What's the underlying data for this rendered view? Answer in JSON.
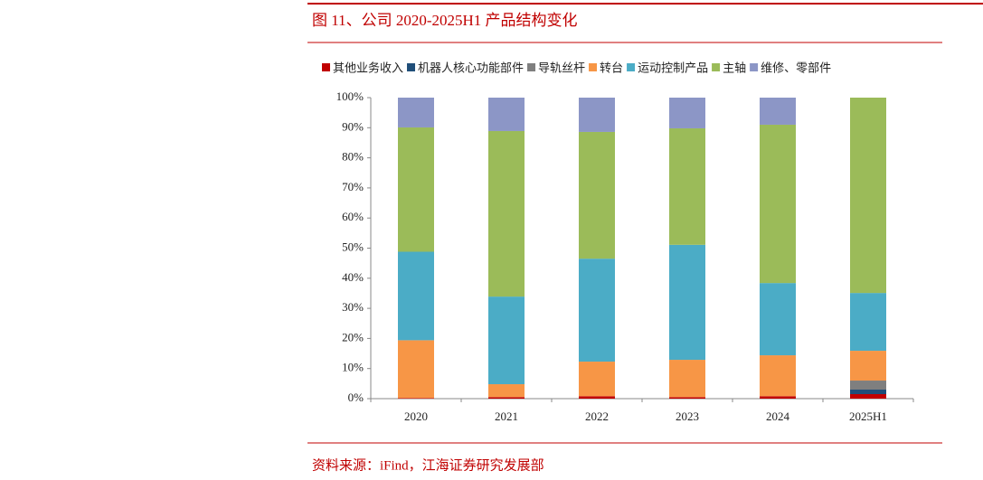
{
  "chart_data": {
    "type": "stacked_bar",
    "title": "图 11、公司 2020-2025H1 产品结构变化",
    "source": "资料来源：iFind，江海证券研究发展部",
    "categories": [
      "2020",
      "2021",
      "2022",
      "2023",
      "2024",
      "2025H1"
    ],
    "series": [
      {
        "name": "其他业务收入",
        "color": "#c00000",
        "values": [
          0.2,
          0.5,
          0.8,
          0.5,
          0.8,
          1.5
        ]
      },
      {
        "name": "机器人核心功能部件",
        "color": "#1f4e79",
        "values": [
          0,
          0,
          0,
          0,
          0,
          1.5
        ]
      },
      {
        "name": "导轨丝杆",
        "color": "#7f7f7f",
        "values": [
          0,
          0,
          0,
          0,
          0,
          3.0
        ]
      },
      {
        "name": "转台",
        "color": "#f79646",
        "values": [
          19.2,
          4.3,
          11.5,
          12.4,
          13.6,
          9.9
        ]
      },
      {
        "name": "运动控制产品",
        "color": "#4bacc6",
        "values": [
          29.4,
          29.1,
          34.2,
          38.2,
          24.0,
          19.2
        ]
      },
      {
        "name": "主轴",
        "color": "#9bbb59",
        "values": [
          41.3,
          55.0,
          42.1,
          38.7,
          52.6,
          64.9
        ]
      },
      {
        "name": "维修、零部件",
        "color": "#8c96c6",
        "values": [
          9.9,
          11.1,
          11.4,
          10.2,
          9.0,
          0
        ]
      }
    ],
    "ylim": [
      0,
      100
    ],
    "yticks": [
      {
        "value": 0,
        "label": "0%"
      },
      {
        "value": 10,
        "label": "10%"
      },
      {
        "value": 20,
        "label": "20%"
      },
      {
        "value": 30,
        "label": "30%"
      },
      {
        "value": 40,
        "label": "40%"
      },
      {
        "value": 50,
        "label": "50%"
      },
      {
        "value": 60,
        "label": "60%"
      },
      {
        "value": 70,
        "label": "70%"
      },
      {
        "value": 80,
        "label": "80%"
      },
      {
        "value": 90,
        "label": "90%"
      },
      {
        "value": 100,
        "label": "100%"
      }
    ]
  }
}
